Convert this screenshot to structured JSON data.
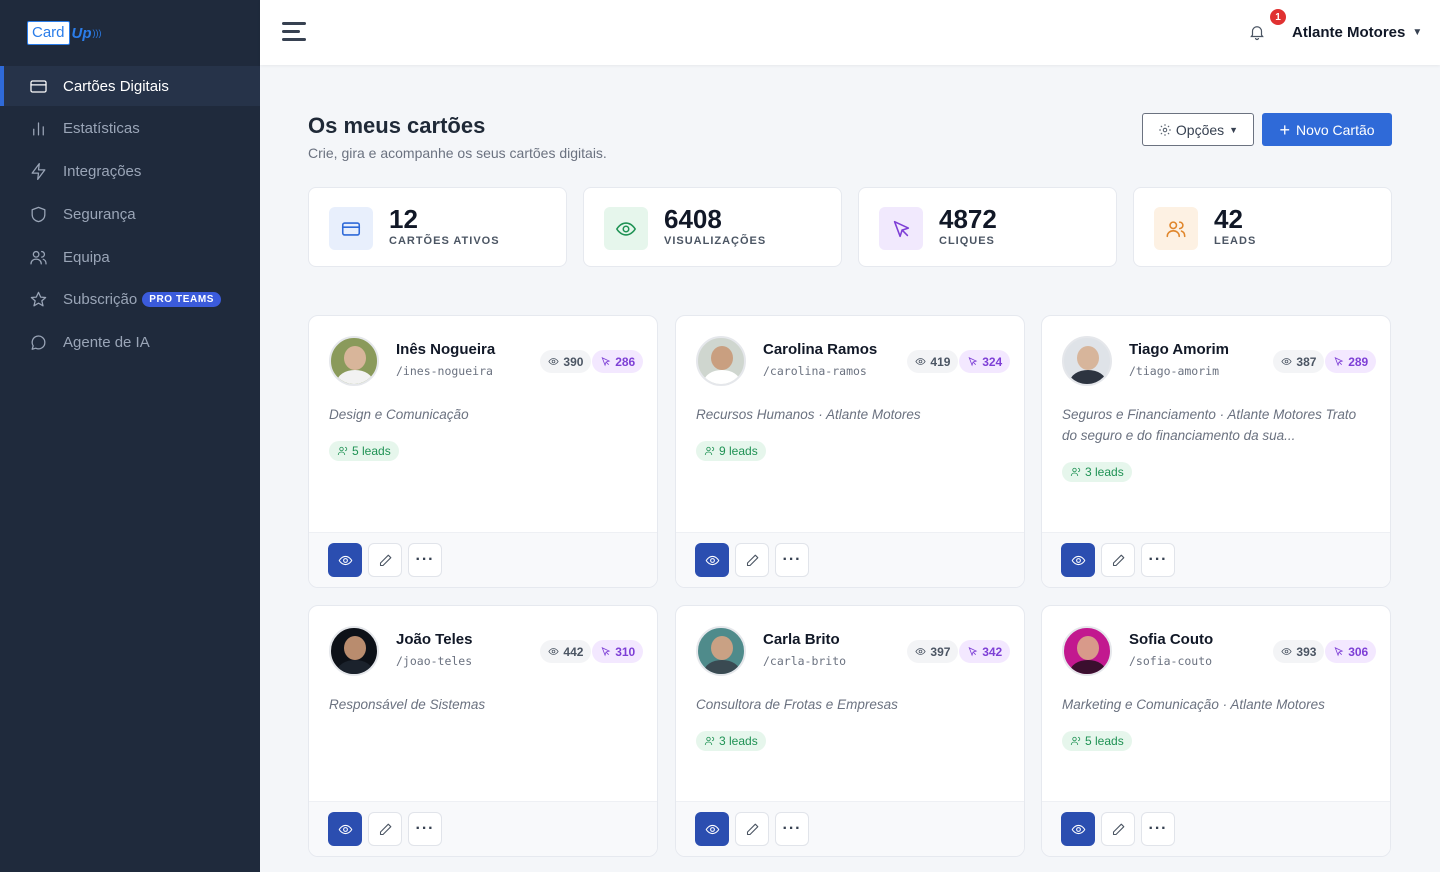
{
  "app": {
    "logo_text": "Card",
    "logo_accent": "Up"
  },
  "sidebar": {
    "items": [
      {
        "label": "Cartões Digitais",
        "icon": "card-icon",
        "active": true
      },
      {
        "label": "Estatísticas",
        "icon": "bar-chart-icon"
      },
      {
        "label": "Integrações",
        "icon": "bolt-icon"
      },
      {
        "label": "Segurança",
        "icon": "shield-icon"
      },
      {
        "label": "Equipa",
        "icon": "users-icon"
      },
      {
        "label": "Subscrição",
        "icon": "star-icon",
        "badge": "PRO TEAMS"
      },
      {
        "label": "Agente de IA",
        "icon": "chat-icon"
      }
    ]
  },
  "topbar": {
    "notifications": "1",
    "user": "Atlante Motores"
  },
  "header": {
    "title": "Os meus cartões",
    "subtitle": "Crie, gira e acompanhe os seus cartões digitais.",
    "options_label": "Opções",
    "new_label": "Novo Cartão"
  },
  "stats": [
    {
      "value": "12",
      "label": "CARTÕES ATIVOS",
      "icon": "card-icon",
      "color": "#2f6ad8",
      "bg": "#e8effc"
    },
    {
      "value": "6408",
      "label": "VISUALIZAÇÕES",
      "icon": "eye-icon",
      "color": "#1f9254",
      "bg": "#e6f6ec"
    },
    {
      "value": "4872",
      "label": "CLIQUES",
      "icon": "cursor-icon",
      "color": "#7e3fd6",
      "bg": "#f1e9fd"
    },
    {
      "value": "42",
      "label": "LEADS",
      "icon": "users-icon",
      "color": "#e0862b",
      "bg": "#fdf1e3"
    }
  ],
  "cards": [
    {
      "name": "Inês Nogueira",
      "slug": "/ines-nogueira",
      "views": "390",
      "clicks": "286",
      "desc": "Design e Comunicação",
      "leads": "5 leads",
      "avatar_bg": "#8a9a5b",
      "avatar_skin": "#d8b59a",
      "avatar_cloth": "#f2f2f2"
    },
    {
      "name": "Carolina Ramos",
      "slug": "/carolina-ramos",
      "views": "419",
      "clicks": "324",
      "desc": "Recursos Humanos · Atlante Motores",
      "leads": "9 leads",
      "avatar_bg": "#cfd6cf",
      "avatar_skin": "#c99f80",
      "avatar_cloth": "#ffffff"
    },
    {
      "name": "Tiago Amorim",
      "slug": "/tiago-amorim",
      "views": "387",
      "clicks": "289",
      "desc": "Seguros e Financiamento · Atlante Motores Trato do seguro e do financiamento da sua...",
      "leads": "3 leads",
      "avatar_bg": "#dfe3e8",
      "avatar_skin": "#d7b59b",
      "avatar_cloth": "#2d3440"
    },
    {
      "name": "João Teles",
      "slug": "/joao-teles",
      "views": "442",
      "clicks": "310",
      "desc": "Responsável de Sistemas",
      "leads": "",
      "avatar_bg": "#0d1118",
      "avatar_skin": "#b98c6e",
      "avatar_cloth": "#1b222c"
    },
    {
      "name": "Carla Brito",
      "slug": "/carla-brito",
      "views": "397",
      "clicks": "342",
      "desc": "Consultora de Frotas e Empresas",
      "leads": "3 leads",
      "avatar_bg": "#4f8b8b",
      "avatar_skin": "#c9a184",
      "avatar_cloth": "#3a4a52"
    },
    {
      "name": "Sofia Couto",
      "slug": "/sofia-couto",
      "views": "393",
      "clicks": "306",
      "desc": "Marketing e Comunicação · Atlante Motores",
      "leads": "5 leads",
      "avatar_bg": "#c2188f",
      "avatar_skin": "#d89a8a",
      "avatar_cloth": "#3a0f2e"
    }
  ]
}
